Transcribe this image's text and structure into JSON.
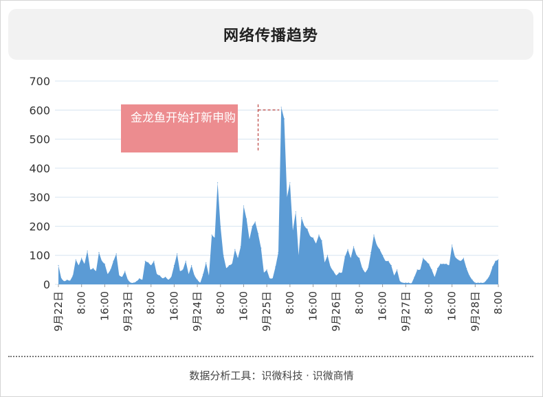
{
  "title": "网络传播趋势",
  "footer": "数据分析工具：识微科技 · 识微商情",
  "annotation": {
    "text": "金龙鱼开始打新申购",
    "index": 69,
    "box_color": "#ec8c8f",
    "line_color": "#c0504d"
  },
  "chart_data": {
    "type": "area",
    "title": "网络传播趋势",
    "xlabel": "",
    "ylabel": "",
    "ylim": [
      0,
      700
    ],
    "yticks": [
      0,
      100,
      200,
      300,
      400,
      500,
      600,
      700
    ],
    "grid": true,
    "legend": "none",
    "fill_color": "#5b9bd5",
    "grid_color": "#d6e4f0",
    "x_start": "9月22日 00:00",
    "x_step_hours": 1,
    "xtick_labels": [
      {
        "index": 0,
        "label": "9月22日"
      },
      {
        "index": 8,
        "label": "8:00"
      },
      {
        "index": 16,
        "label": "16:00"
      },
      {
        "index": 24,
        "label": "9月23日"
      },
      {
        "index": 32,
        "label": "8:00"
      },
      {
        "index": 40,
        "label": "16:00"
      },
      {
        "index": 48,
        "label": "9月24日"
      },
      {
        "index": 56,
        "label": "8:00"
      },
      {
        "index": 64,
        "label": "16:00"
      },
      {
        "index": 72,
        "label": "9月25日"
      },
      {
        "index": 80,
        "label": "8:00"
      },
      {
        "index": 88,
        "label": "16:00"
      },
      {
        "index": 96,
        "label": "9月26日"
      },
      {
        "index": 104,
        "label": "8:00"
      },
      {
        "index": 112,
        "label": "16:00"
      },
      {
        "index": 120,
        "label": "9月27日"
      },
      {
        "index": 128,
        "label": "8:00"
      },
      {
        "index": 136,
        "label": "16:00"
      },
      {
        "index": 144,
        "label": "9月28日"
      },
      {
        "index": 152,
        "label": "8:00"
      }
    ],
    "values": [
      65,
      20,
      10,
      15,
      12,
      30,
      85,
      65,
      90,
      70,
      115,
      50,
      55,
      45,
      110,
      80,
      70,
      35,
      50,
      80,
      105,
      30,
      25,
      45,
      15,
      5,
      5,
      10,
      20,
      15,
      80,
      75,
      65,
      80,
      35,
      30,
      20,
      25,
      15,
      25,
      65,
      105,
      45,
      50,
      80,
      35,
      65,
      30,
      15,
      5,
      35,
      75,
      30,
      170,
      160,
      350,
      200,
      100,
      55,
      65,
      70,
      120,
      90,
      130,
      270,
      225,
      155,
      200,
      215,
      175,
      125,
      40,
      50,
      20,
      20,
      60,
      110,
      610,
      570,
      300,
      350,
      185,
      250,
      100,
      230,
      200,
      190,
      165,
      160,
      140,
      170,
      150,
      75,
      100,
      60,
      45,
      30,
      40,
      40,
      95,
      120,
      90,
      130,
      100,
      90,
      55,
      40,
      55,
      110,
      170,
      135,
      120,
      100,
      80,
      80,
      65,
      30,
      50,
      10,
      5,
      5,
      5,
      3,
      25,
      50,
      50,
      90,
      80,
      70,
      50,
      25,
      55,
      70,
      70,
      70,
      65,
      135,
      95,
      85,
      80,
      90,
      55,
      30,
      15,
      5,
      5,
      5,
      5,
      15,
      30,
      60,
      80,
      85
    ]
  }
}
